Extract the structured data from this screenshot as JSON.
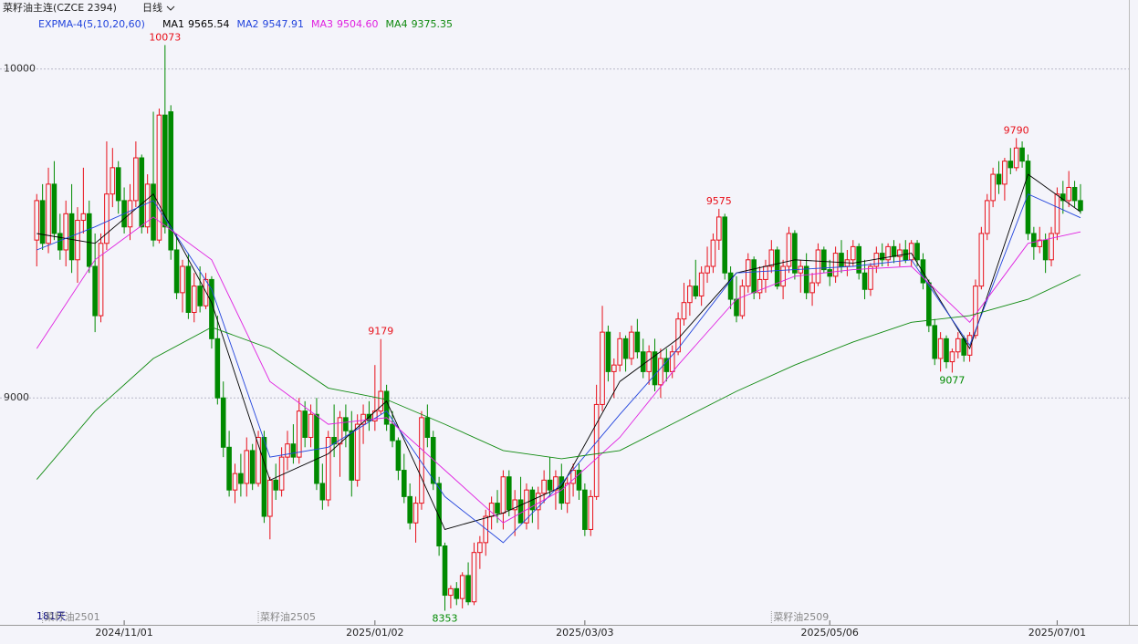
{
  "chart_data": {
    "type": "candlestick",
    "title": "菜籽油主连(CZCE 2394)",
    "period": "日线",
    "indicator": "EXPMA-4(5,10,20,60)",
    "days_label": "181天",
    "up_color": "#e8101a",
    "down_color": "#008a00",
    "ylim": [
      8310,
      10160
    ],
    "yticks": [
      9000,
      10000
    ],
    "grid": true,
    "xlim": [
      -6.3,
      187.3
    ],
    "xticks": [
      {
        "value": 15,
        "label": "2024/11/01"
      },
      {
        "value": 58,
        "label": "2025/01/02"
      },
      {
        "value": 94,
        "label": "2025/03/03"
      },
      {
        "value": 136,
        "label": "2025/05/06"
      },
      {
        "value": 175,
        "label": "2025/07/01"
      }
    ],
    "contracts": [
      {
        "x": 1,
        "label": "菜籽油2501"
      },
      {
        "x": 38,
        "label": "菜籽油2505"
      },
      {
        "x": 126,
        "label": "菜籽油2509"
      }
    ],
    "candles": [
      [
        9480,
        9620,
        9400,
        9600
      ],
      [
        9600,
        9650,
        9450,
        9470
      ],
      [
        9470,
        9700,
        9440,
        9650
      ],
      [
        9650,
        9720,
        9480,
        9500
      ],
      [
        9500,
        9560,
        9420,
        9450
      ],
      [
        9450,
        9600,
        9400,
        9560
      ],
      [
        9560,
        9650,
        9380,
        9420
      ],
      [
        9420,
        9580,
        9350,
        9540
      ],
      [
        9540,
        9700,
        9500,
        9560
      ],
      [
        9560,
        9600,
        9380,
        9400
      ],
      [
        9400,
        9500,
        9200,
        9250
      ],
      [
        9250,
        9500,
        9230,
        9470
      ],
      [
        9470,
        9780,
        9450,
        9620
      ],
      [
        9620,
        9760,
        9580,
        9700
      ],
      [
        9700,
        9720,
        9560,
        9600
      ],
      [
        9600,
        9640,
        9500,
        9520
      ],
      [
        9520,
        9650,
        9480,
        9600
      ],
      [
        9600,
        9780,
        9580,
        9730
      ],
      [
        9730,
        9740,
        9500,
        9520
      ],
      [
        9520,
        9680,
        9500,
        9650
      ],
      [
        9650,
        9870,
        9460,
        9480
      ],
      [
        9480,
        9880,
        9470,
        9860
      ],
      [
        9860,
        10073,
        9500,
        9520
      ],
      [
        9870,
        9890,
        9420,
        9450
      ],
      [
        9450,
        9500,
        9300,
        9320
      ],
      [
        9320,
        9420,
        9260,
        9400
      ],
      [
        9400,
        9440,
        9240,
        9260
      ],
      [
        9260,
        9380,
        9230,
        9340
      ],
      [
        9340,
        9400,
        9260,
        9280
      ],
      [
        9280,
        9380,
        9270,
        9360
      ],
      [
        9360,
        9370,
        9150,
        9180
      ],
      [
        9180,
        9250,
        8980,
        9000
      ],
      [
        9000,
        9050,
        8820,
        8850
      ],
      [
        8850,
        8900,
        8700,
        8720
      ],
      [
        8720,
        8800,
        8680,
        8770
      ],
      [
        8770,
        8830,
        8700,
        8740
      ],
      [
        8740,
        8880,
        8700,
        8840
      ],
      [
        8840,
        8860,
        8720,
        8740
      ],
      [
        8740,
        8900,
        8730,
        8880
      ],
      [
        8880,
        8900,
        8620,
        8640
      ],
      [
        8640,
        8760,
        8570,
        8750
      ],
      [
        8750,
        8800,
        8690,
        8720
      ],
      [
        8720,
        8850,
        8700,
        8820
      ],
      [
        8820,
        8900,
        8780,
        8860
      ],
      [
        8860,
        8920,
        8800,
        8820
      ],
      [
        8820,
        9000,
        8800,
        8960
      ],
      [
        8960,
        8990,
        8850,
        8880
      ],
      [
        8880,
        8980,
        8850,
        8950
      ],
      [
        8950,
        9000,
        8720,
        8740
      ],
      [
        8740,
        8800,
        8660,
        8690
      ],
      [
        8690,
        8900,
        8670,
        8880
      ],
      [
        8880,
        8980,
        8820,
        8860
      ],
      [
        8860,
        8960,
        8760,
        8940
      ],
      [
        8940,
        8980,
        8850,
        8900
      ],
      [
        8900,
        8960,
        8700,
        8750
      ],
      [
        8750,
        8950,
        8730,
        8920
      ],
      [
        8920,
        8980,
        8860,
        8950
      ],
      [
        8950,
        8990,
        8900,
        8930
      ],
      [
        8930,
        9100,
        8900,
        8960
      ],
      [
        8960,
        9179,
        8950,
        9020
      ],
      [
        9020,
        9040,
        8900,
        8920
      ],
      [
        8920,
        8960,
        8850,
        8870
      ],
      [
        8870,
        8880,
        8750,
        8780
      ],
      [
        8780,
        8830,
        8680,
        8700
      ],
      [
        8700,
        8740,
        8600,
        8620
      ],
      [
        8620,
        8700,
        8560,
        8680
      ],
      [
        8680,
        8960,
        8660,
        8940
      ],
      [
        8940,
        8980,
        8850,
        8880
      ],
      [
        8880,
        8900,
        8720,
        8740
      ],
      [
        8740,
        8760,
        8520,
        8550
      ],
      [
        8550,
        8560,
        8353,
        8400
      ],
      [
        8400,
        8430,
        8360,
        8420
      ],
      [
        8420,
        8440,
        8370,
        8390
      ],
      [
        8390,
        8470,
        8360,
        8460
      ],
      [
        8460,
        8500,
        8370,
        8380
      ],
      [
        8380,
        8560,
        8370,
        8530
      ],
      [
        8530,
        8580,
        8480,
        8560
      ],
      [
        8560,
        8660,
        8520,
        8640
      ],
      [
        8640,
        8700,
        8600,
        8680
      ],
      [
        8680,
        8720,
        8620,
        8650
      ],
      [
        8650,
        8780,
        8600,
        8760
      ],
      [
        8760,
        8780,
        8640,
        8660
      ],
      [
        8660,
        8720,
        8580,
        8690
      ],
      [
        8690,
        8760,
        8620,
        8620
      ],
      [
        8620,
        8740,
        8600,
        8720
      ],
      [
        8720,
        8730,
        8620,
        8660
      ],
      [
        8660,
        8730,
        8600,
        8710
      ],
      [
        8710,
        8780,
        8680,
        8750
      ],
      [
        8750,
        8820,
        8700,
        8720
      ],
      [
        8720,
        8780,
        8660,
        8760
      ],
      [
        8760,
        8800,
        8660,
        8680
      ],
      [
        8680,
        8760,
        8650,
        8740
      ],
      [
        8740,
        8800,
        8700,
        8780
      ],
      [
        8780,
        8800,
        8690,
        8720
      ],
      [
        8720,
        8740,
        8580,
        8600
      ],
      [
        8600,
        8720,
        8580,
        8700
      ],
      [
        8700,
        9040,
        8690,
        8980
      ],
      [
        8980,
        9280,
        8960,
        9200
      ],
      [
        9200,
        9220,
        9050,
        9080
      ],
      [
        9080,
        9120,
        9000,
        9100
      ],
      [
        9100,
        9200,
        9080,
        9180
      ],
      [
        9180,
        9190,
        9080,
        9120
      ],
      [
        9120,
        9220,
        9100,
        9200
      ],
      [
        9200,
        9240,
        9120,
        9140
      ],
      [
        9140,
        9180,
        9060,
        9080
      ],
      [
        9080,
        9160,
        9040,
        9140
      ],
      [
        9140,
        9180,
        9020,
        9040
      ],
      [
        9040,
        9150,
        9000,
        9120
      ],
      [
        9120,
        9150,
        9050,
        9080
      ],
      [
        9080,
        9160,
        9060,
        9140
      ],
      [
        9140,
        9260,
        9130,
        9240
      ],
      [
        9240,
        9350,
        9220,
        9290
      ],
      [
        9290,
        9360,
        9250,
        9340
      ],
      [
        9340,
        9420,
        9300,
        9310
      ],
      [
        9310,
        9400,
        9280,
        9380
      ],
      [
        9380,
        9460,
        9350,
        9400
      ],
      [
        9400,
        9500,
        9380,
        9480
      ],
      [
        9480,
        9575,
        9450,
        9550
      ],
      [
        9550,
        9560,
        9360,
        9380
      ],
      [
        9380,
        9400,
        9270,
        9300
      ],
      [
        9300,
        9370,
        9230,
        9250
      ],
      [
        9250,
        9360,
        9240,
        9340
      ],
      [
        9340,
        9440,
        9320,
        9420
      ],
      [
        9420,
        9430,
        9300,
        9320
      ],
      [
        9320,
        9400,
        9300,
        9360
      ],
      [
        9360,
        9420,
        9320,
        9400
      ],
      [
        9400,
        9480,
        9380,
        9450
      ],
      [
        9450,
        9460,
        9330,
        9340
      ],
      [
        9340,
        9420,
        9300,
        9400
      ],
      [
        9400,
        9520,
        9380,
        9500
      ],
      [
        9500,
        9510,
        9360,
        9380
      ],
      [
        9380,
        9420,
        9320,
        9400
      ],
      [
        9400,
        9440,
        9300,
        9320
      ],
      [
        9320,
        9380,
        9280,
        9350
      ],
      [
        9350,
        9470,
        9340,
        9450
      ],
      [
        9450,
        9460,
        9380,
        9390
      ],
      [
        9390,
        9420,
        9340,
        9370
      ],
      [
        9370,
        9460,
        9350,
        9440
      ],
      [
        9440,
        9480,
        9380,
        9400
      ],
      [
        9400,
        9450,
        9370,
        9420
      ],
      [
        9420,
        9480,
        9400,
        9460
      ],
      [
        9460,
        9470,
        9360,
        9380
      ],
      [
        9380,
        9420,
        9300,
        9330
      ],
      [
        9330,
        9410,
        9310,
        9400
      ],
      [
        9400,
        9460,
        9380,
        9440
      ],
      [
        9440,
        9470,
        9400,
        9420
      ],
      [
        9420,
        9470,
        9400,
        9460
      ],
      [
        9460,
        9480,
        9410,
        9430
      ],
      [
        9430,
        9470,
        9400,
        9450
      ],
      [
        9450,
        9480,
        9410,
        9420
      ],
      [
        9420,
        9480,
        9400,
        9470
      ],
      [
        9470,
        9480,
        9400,
        9420
      ],
      [
        9420,
        9440,
        9330,
        9350
      ],
      [
        9350,
        9360,
        9200,
        9220
      ],
      [
        9220,
        9240,
        9100,
        9120
      ],
      [
        9120,
        9200,
        9080,
        9180
      ],
      [
        9180,
        9190,
        9090,
        9110
      ],
      [
        9110,
        9150,
        9077,
        9140
      ],
      [
        9140,
        9200,
        9120,
        9180
      ],
      [
        9180,
        9190,
        9110,
        9130
      ],
      [
        9130,
        9200,
        9110,
        9190
      ],
      [
        9190,
        9360,
        9180,
        9340
      ],
      [
        9340,
        9520,
        9330,
        9500
      ],
      [
        9500,
        9620,
        9480,
        9600
      ],
      [
        9600,
        9700,
        9580,
        9680
      ],
      [
        9680,
        9720,
        9620,
        9650
      ],
      [
        9650,
        9730,
        9600,
        9720
      ],
      [
        9720,
        9760,
        9680,
        9700
      ],
      [
        9700,
        9790,
        9690,
        9760
      ],
      [
        9760,
        9780,
        9700,
        9720
      ],
      [
        9720,
        9740,
        9480,
        9500
      ],
      [
        9500,
        9520,
        9420,
        9460
      ],
      [
        9460,
        9520,
        9440,
        9480
      ],
      [
        9480,
        9500,
        9380,
        9420
      ],
      [
        9420,
        9520,
        9400,
        9500
      ],
      [
        9500,
        9640,
        9480,
        9620
      ],
      [
        9620,
        9660,
        9560,
        9600
      ],
      [
        9600,
        9690,
        9580,
        9640
      ],
      [
        9640,
        9660,
        9580,
        9600
      ],
      [
        9600,
        9650,
        9560,
        9570
      ]
    ],
    "series": [
      {
        "name": "MA1",
        "last": 9565.54,
        "color": "#000000",
        "x": [
          0,
          10,
          20,
          30,
          40,
          50,
          60,
          70,
          80,
          90,
          100,
          110,
          120,
          130,
          140,
          150,
          160,
          170,
          179
        ],
        "values": [
          9500,
          9470,
          9620,
          9290,
          8750,
          8830,
          8990,
          8600,
          8650,
          8730,
          9050,
          9180,
          9380,
          9420,
          9410,
          9440,
          9150,
          9680,
          9566
        ]
      },
      {
        "name": "MA2",
        "last": 9547.91,
        "color": "#2244dd",
        "x": [
          0,
          10,
          20,
          30,
          40,
          50,
          60,
          70,
          80,
          90,
          100,
          110,
          120,
          130,
          140,
          150,
          160,
          170,
          179
        ],
        "values": [
          9450,
          9520,
          9600,
          9330,
          8820,
          8850,
          8960,
          8700,
          8560,
          8740,
          8950,
          9150,
          9380,
          9390,
          9400,
          9420,
          9160,
          9620,
          9548
        ]
      },
      {
        "name": "MA3",
        "last": {
          "value": 9504.6,
          "label": "9504.60"
        },
        "color": "#e020e0",
        "x": [
          0,
          10,
          20,
          30,
          40,
          50,
          60,
          70,
          80,
          90,
          100,
          110,
          120,
          130,
          140,
          150,
          160,
          170,
          179
        ],
        "values": [
          9150,
          9420,
          9550,
          9420,
          9050,
          8920,
          8940,
          8780,
          8620,
          8720,
          8880,
          9100,
          9300,
          9370,
          9390,
          9400,
          9230,
          9470,
          9505
        ]
      },
      {
        "name": "MA4",
        "last": 9375.35,
        "color": "#108a10",
        "x": [
          0,
          10,
          20,
          30,
          40,
          50,
          60,
          70,
          80,
          90,
          100,
          110,
          120,
          130,
          140,
          150,
          160,
          170,
          179
        ],
        "values": [
          8752,
          8960,
          9120,
          9215,
          9150,
          9030,
          8995,
          8920,
          8840,
          8815,
          8840,
          8930,
          9020,
          9100,
          9170,
          9230,
          9250,
          9300,
          9375
        ]
      }
    ],
    "annotations": [
      {
        "x": 22,
        "value": 10073,
        "position": "above",
        "color": "#e8101a"
      },
      {
        "x": 59,
        "value": 9179,
        "position": "above",
        "color": "#e8101a"
      },
      {
        "x": 70,
        "value": 8353,
        "position": "below",
        "color": "#008a00"
      },
      {
        "x": 117,
        "value": 9575,
        "position": "above",
        "color": "#e8101a"
      },
      {
        "x": 157,
        "value": 9077,
        "position": "below",
        "color": "#008a00"
      },
      {
        "x": 168,
        "value": 9790,
        "position": "above",
        "color": "#e8101a"
      }
    ]
  }
}
